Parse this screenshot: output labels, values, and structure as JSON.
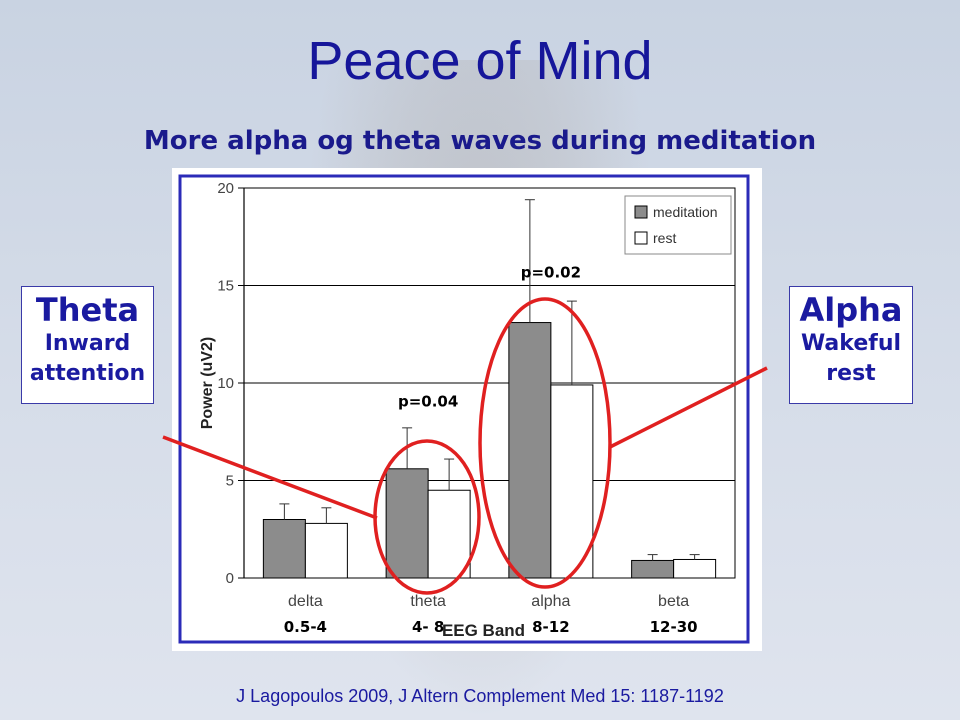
{
  "slide": {
    "title": "Peace of Mind",
    "subtitle": "More alpha og theta waves during meditation",
    "citation": "J Lagopoulos 2009, J Altern Complement Med 15: 1187-1192"
  },
  "callouts": {
    "theta": {
      "heading": "Theta",
      "line1": "Inward",
      "line2": "attention"
    },
    "alpha": {
      "heading": "Alpha",
      "line1": "Wakeful",
      "line2": "rest"
    }
  },
  "colors": {
    "title": "#16169a",
    "frame": "#2b2bb8",
    "highlight": "#e02020",
    "meditation_bar": "#8c8c8c",
    "rest_bar": "#ffffff"
  },
  "chart_data": {
    "type": "bar",
    "xlabel": "EEG Band",
    "ylabel": "Power (uV2)",
    "ylim": [
      0,
      20
    ],
    "yticks": [
      0,
      5,
      10,
      15,
      20
    ],
    "grid": true,
    "legend_position": "top-right",
    "categories": [
      "delta",
      "theta",
      "alpha",
      "beta"
    ],
    "band_ranges": [
      "0.5-4",
      "4- 8",
      "8-12",
      "12-30"
    ],
    "series": [
      {
        "name": "meditation",
        "values": [
          3.0,
          5.6,
          13.1,
          0.9
        ],
        "errors": [
          0.8,
          2.1,
          6.3,
          0.3
        ]
      },
      {
        "name": "rest",
        "values": [
          2.8,
          4.5,
          9.9,
          0.95
        ],
        "errors": [
          0.8,
          1.6,
          4.3,
          0.25
        ]
      }
    ],
    "annotations": [
      {
        "text": "p=0.04",
        "category": "theta",
        "y": 8.8
      },
      {
        "text": "p=0.02",
        "category": "alpha",
        "y": 15.4
      }
    ]
  }
}
